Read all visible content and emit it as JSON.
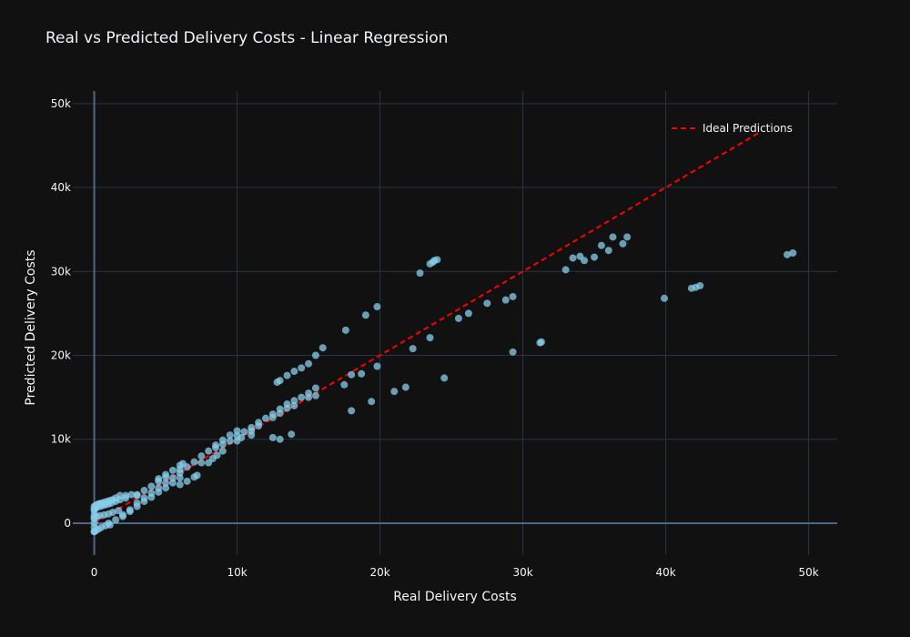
{
  "chart_data": {
    "type": "scatter",
    "title": "Real vs Predicted Delivery Costs - Linear Regression",
    "xlabel": "Real Delivery Costs",
    "ylabel": "Predicted Delivery Costs",
    "xlim": [
      -1500,
      52000
    ],
    "ylim": [
      -3800,
      51500
    ],
    "x_ticks": [
      0,
      10000,
      20000,
      30000,
      40000,
      50000
    ],
    "x_tick_labels": [
      "0",
      "10k",
      "20k",
      "30k",
      "40k",
      "50k"
    ],
    "y_ticks": [
      0,
      10000,
      20000,
      30000,
      40000,
      50000
    ],
    "y_tick_labels": [
      "0",
      "10k",
      "20k",
      "30k",
      "40k",
      "50k"
    ],
    "grid": true,
    "legend_position": "top-right",
    "colors": {
      "background": "#111111",
      "grid": "#283442",
      "zeroline": "#506784",
      "points": "#87ceeb",
      "ideal_line": "#ff0000"
    },
    "series": [
      {
        "name": "",
        "kind": "points",
        "x": [
          0,
          0,
          0,
          0,
          0,
          0,
          0,
          100,
          200,
          300,
          400,
          500,
          700,
          900,
          1100,
          1300,
          1500,
          1800,
          2200,
          0,
          100,
          200,
          400,
          600,
          800,
          1000,
          1200,
          1500,
          1800,
          2200,
          2600,
          3000,
          0,
          200,
          400,
          700,
          1000,
          1300,
          1700,
          0,
          100,
          300,
          500,
          800,
          1100,
          1000,
          1500,
          2000,
          2500,
          3000,
          3500,
          4000,
          4500,
          5000,
          5500,
          6000,
          6500,
          7000,
          7500,
          8000,
          8500,
          9000,
          9500,
          10000,
          2000,
          2500,
          3000,
          3500,
          4000,
          4500,
          5000,
          5500,
          6000,
          3000,
          3500,
          4000,
          4500,
          5000,
          6000,
          4500,
          5000,
          5500,
          6000,
          6200,
          6000,
          6500,
          7000,
          7200,
          7500,
          8000,
          8300,
          8600,
          9000,
          8500,
          9000,
          9500,
          10000,
          10500,
          11000,
          11500,
          12000,
          12500,
          13000,
          13500,
          14000,
          14500,
          15000,
          15500,
          11000,
          11500,
          12500,
          13000,
          13500,
          14000,
          12800,
          13000,
          13500,
          14000,
          14500,
          15000,
          15500,
          16000,
          10000,
          10300,
          11000,
          12500,
          13000,
          13800,
          15000,
          15500,
          17500,
          17600,
          18000,
          18700,
          19000,
          19800,
          18000,
          19400,
          19800,
          21000,
          21800,
          22300,
          23500,
          22800,
          23500,
          23700,
          23800,
          24000,
          24500,
          25500,
          26200,
          27500,
          28800,
          29300,
          29300,
          31200,
          31300,
          33000,
          33500,
          34000,
          34300,
          35000,
          35500,
          36000,
          36300,
          37000,
          37300,
          39900,
          41800,
          42100,
          42400,
          48500,
          48900
        ],
        "y": [
          -1000,
          -500,
          0,
          500,
          1000,
          1500,
          2000,
          2100,
          2200,
          2300,
          2300,
          2400,
          2500,
          2600,
          2700,
          2800,
          3000,
          3300,
          3300,
          1700,
          1800,
          1900,
          2000,
          2100,
          2200,
          2300,
          2400,
          2600,
          2800,
          3000,
          3400,
          3400,
          700,
          800,
          900,
          1000,
          1100,
          1300,
          1500,
          -1000,
          -900,
          -700,
          -500,
          -300,
          -200,
          0,
          400,
          1000,
          1600,
          2400,
          3000,
          3600,
          4200,
          4800,
          5400,
          6000,
          6700,
          7300,
          8000,
          8600,
          9300,
          9900,
          10500,
          11000,
          800,
          1400,
          2000,
          2600,
          3100,
          3700,
          4200,
          4800,
          5400,
          3300,
          3900,
          4400,
          5000,
          5500,
          6400,
          5300,
          5800,
          6300,
          6900,
          7100,
          4600,
          5000,
          5500,
          5700,
          7200,
          7200,
          7700,
          8100,
          8600,
          9000,
          9400,
          9800,
          10400,
          10900,
          11400,
          12000,
          12500,
          13000,
          13600,
          14200,
          14600,
          15000,
          15500,
          16100,
          11000,
          11600,
          12600,
          13100,
          13700,
          14000,
          16800,
          17000,
          17600,
          18100,
          18500,
          19000,
          20000,
          20900,
          9800,
          10200,
          10500,
          10200,
          10000,
          10600,
          15000,
          15200,
          16500,
          23000,
          17700,
          17800,
          24800,
          25800,
          13400,
          14500,
          18700,
          15700,
          16200,
          20800,
          22100,
          29800,
          30900,
          31100,
          31300,
          31400,
          17300,
          24400,
          25000,
          26200,
          26600,
          27000,
          20400,
          21500,
          21600,
          30200,
          31600,
          31800,
          31300,
          31700,
          33100,
          32500,
          34100,
          33300,
          34100,
          26800,
          28000,
          28100,
          28300,
          32000,
          32200
        ]
      },
      {
        "name": "Ideal Predictions",
        "kind": "dashed-line",
        "x": [
          0,
          46500
        ],
        "y": [
          0,
          46500
        ]
      }
    ]
  }
}
